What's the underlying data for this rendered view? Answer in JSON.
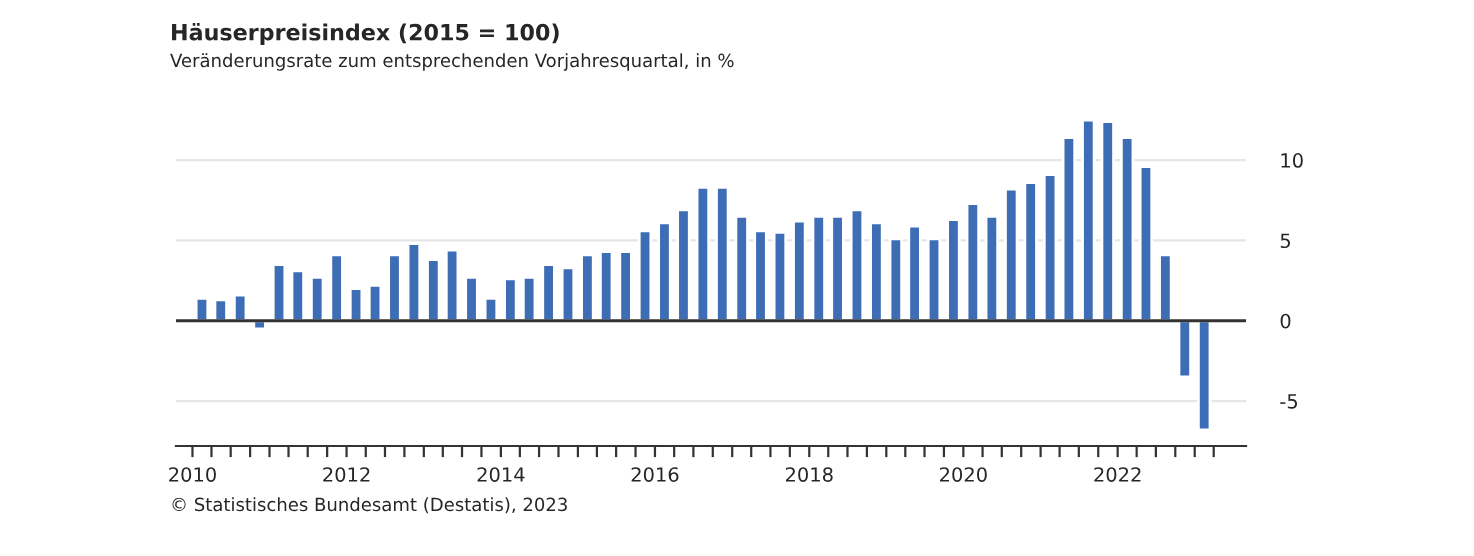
{
  "chart_data": {
    "type": "bar",
    "title": "Häuserpreisindex (2015 = 100)",
    "subtitle": "Veränderungsrate zum entsprechenden Vorjahresquartal, in %",
    "x": [
      "2010-02-15",
      "2010-05-15",
      "2010-08-15",
      "2010-11-15",
      "2011-02-15",
      "2011-05-15",
      "2011-08-15",
      "2011-11-15",
      "2012-02-15",
      "2012-05-15",
      "2012-08-15",
      "2012-11-15",
      "2013-02-15",
      "2013-05-15",
      "2013-08-15",
      "2013-11-15",
      "2014-02-15",
      "2014-05-15",
      "2014-08-15",
      "2014-11-15",
      "2015-02-15",
      "2015-05-15",
      "2015-08-15",
      "2015-11-15",
      "2016-02-15",
      "2016-05-15",
      "2016-08-15",
      "2016-11-15",
      "2017-02-15",
      "2017-05-15",
      "2017-08-15",
      "2017-11-15",
      "2018-02-15",
      "2018-05-15",
      "2018-08-15",
      "2018-11-15",
      "2019-02-15",
      "2019-05-15",
      "2019-08-15",
      "2019-11-15",
      "2020-02-15",
      "2020-05-15",
      "2020-08-15",
      "2020-11-15",
      "2021-02-15",
      "2021-05-15",
      "2021-08-15",
      "2021-11-15",
      "2022-02-15",
      "2022-05-15",
      "2022-08-15",
      "2022-11-15",
      "2023-02-15"
    ],
    "series": [
      {
        "color": "#3d6db5",
        "values": [
          1.4,
          1.3,
          1.6,
          -0.5,
          3.5,
          3.1,
          2.7,
          4.1,
          2.0,
          2.2,
          4.1,
          4.8,
          3.8,
          4.4,
          2.7,
          1.4,
          2.6,
          2.7,
          3.5,
          3.3,
          4.1,
          4.3,
          4.3,
          5.6,
          6.1,
          6.9,
          8.3,
          8.3,
          6.5,
          5.6,
          5.5,
          6.2,
          6.5,
          6.5,
          6.9,
          6.1,
          5.1,
          5.9,
          5.1,
          6.3,
          7.3,
          6.5,
          8.2,
          8.6,
          9.1,
          11.4,
          12.5,
          12.4,
          11.4,
          9.6,
          4.1,
          -3.5,
          -6.8
        ]
      }
    ],
    "ylim": [
      -7.8,
      12.5
    ],
    "yticks": [
      -5,
      0,
      5,
      10
    ],
    "xlim": [
      "2009-10-15",
      "2023-09-01"
    ],
    "xticks": [
      {
        "value": "2010-01-01",
        "label": "2010"
      },
      {
        "value": "2010-04-01",
        "label": null
      },
      {
        "value": "2010-07-01",
        "label": null
      },
      {
        "value": "2010-10-01",
        "label": null
      },
      {
        "value": "2011-01-01",
        "label": null
      },
      {
        "value": "2011-04-01",
        "label": null
      },
      {
        "value": "2011-07-01",
        "label": null
      },
      {
        "value": "2011-10-01",
        "label": null
      },
      {
        "value": "2012-01-01",
        "label": "2012"
      },
      {
        "value": "2012-04-01",
        "label": null
      },
      {
        "value": "2012-07-01",
        "label": null
      },
      {
        "value": "2012-10-01",
        "label": null
      },
      {
        "value": "2013-01-01",
        "label": null
      },
      {
        "value": "2013-04-01",
        "label": null
      },
      {
        "value": "2013-07-01",
        "label": null
      },
      {
        "value": "2013-10-01",
        "label": null
      },
      {
        "value": "2014-01-01",
        "label": "2014"
      },
      {
        "value": "2014-04-01",
        "label": null
      },
      {
        "value": "2014-07-01",
        "label": null
      },
      {
        "value": "2014-10-01",
        "label": null
      },
      {
        "value": "2015-01-01",
        "label": null
      },
      {
        "value": "2015-04-01",
        "label": null
      },
      {
        "value": "2015-07-01",
        "label": null
      },
      {
        "value": "2015-10-01",
        "label": null
      },
      {
        "value": "2016-01-01",
        "label": "2016"
      },
      {
        "value": "2016-04-01",
        "label": null
      },
      {
        "value": "2016-07-01",
        "label": null
      },
      {
        "value": "2016-10-01",
        "label": null
      },
      {
        "value": "2017-01-01",
        "label": null
      },
      {
        "value": "2017-04-01",
        "label": null
      },
      {
        "value": "2017-07-01",
        "label": null
      },
      {
        "value": "2017-10-01",
        "label": null
      },
      {
        "value": "2018-01-01",
        "label": "2018"
      },
      {
        "value": "2018-04-01",
        "label": null
      },
      {
        "value": "2018-07-01",
        "label": null
      },
      {
        "value": "2018-10-01",
        "label": null
      },
      {
        "value": "2019-01-01",
        "label": null
      },
      {
        "value": "2019-04-01",
        "label": null
      },
      {
        "value": "2019-07-01",
        "label": null
      },
      {
        "value": "2019-10-01",
        "label": null
      },
      {
        "value": "2020-01-01",
        "label": "2020"
      },
      {
        "value": "2020-04-01",
        "label": null
      },
      {
        "value": "2020-07-01",
        "label": null
      },
      {
        "value": "2020-10-01",
        "label": null
      },
      {
        "value": "2021-01-01",
        "label": null
      },
      {
        "value": "2021-04-01",
        "label": null
      },
      {
        "value": "2021-07-01",
        "label": null
      },
      {
        "value": "2021-10-01",
        "label": null
      },
      {
        "value": "2022-01-01",
        "label": "2022"
      },
      {
        "value": "2022-04-01",
        "label": null
      },
      {
        "value": "2022-07-01",
        "label": null
      },
      {
        "value": "2022-10-01",
        "label": null
      },
      {
        "value": "2023-01-01",
        "label": null
      },
      {
        "value": "2023-04-01",
        "label": null
      }
    ],
    "ref_lines": [
      {
        "axis": "y",
        "value": 0,
        "color": "#333333"
      }
    ],
    "grid": "y",
    "legend": false,
    "annotations": [
      "© Statistisches Bundesamt (Destatis), 2023"
    ]
  }
}
